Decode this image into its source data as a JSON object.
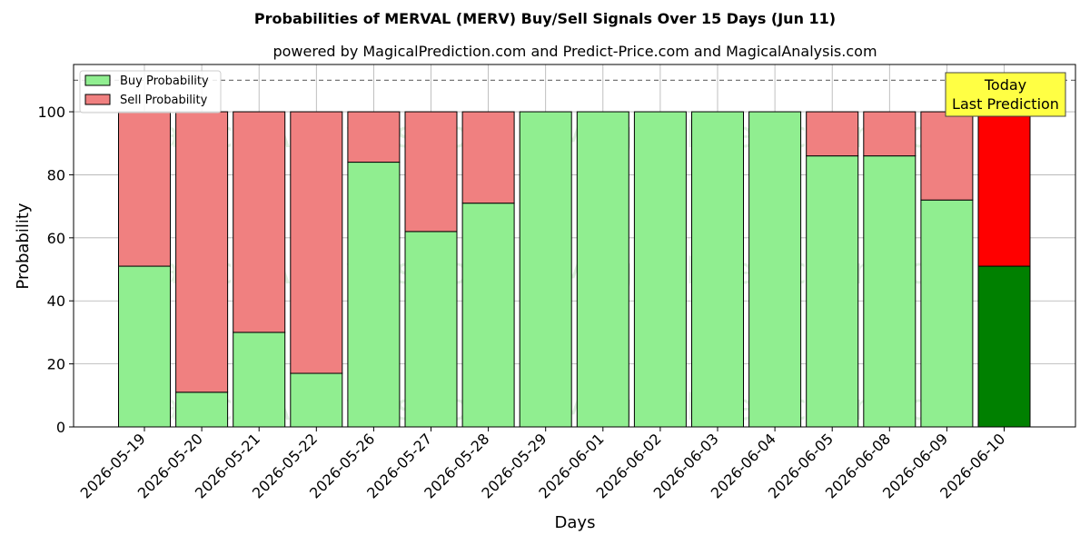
{
  "chart_data": {
    "type": "bar",
    "stacked": true,
    "title": "Probabilities of MERVAL (MERV) Buy/Sell Signals Over 15 Days (Jun 11)",
    "subtitle": "powered by MagicalPrediction.com and Predict-Price.com and MagicalAnalysis.com",
    "xlabel": "Days",
    "ylabel": "Probability",
    "ylim": [
      0,
      115
    ],
    "yticks": [
      0,
      20,
      40,
      60,
      80,
      100
    ],
    "grid": true,
    "legend_position": "top-left",
    "reference_line": 110,
    "categories": [
      "2026-05-19",
      "2026-05-20",
      "2026-05-21",
      "2026-05-22",
      "2026-05-26",
      "2026-05-27",
      "2026-05-28",
      "2026-05-29",
      "2026-06-01",
      "2026-06-02",
      "2026-06-03",
      "2026-06-04",
      "2026-06-05",
      "2026-06-08",
      "2026-06-09",
      "2026-06-10"
    ],
    "series": [
      {
        "name": "Buy Probability",
        "color": "#90ee90",
        "highlight_color": "#008000",
        "values": [
          51,
          11,
          30,
          17,
          84,
          62,
          71,
          100,
          100,
          100,
          100,
          100,
          86,
          86,
          72,
          51
        ]
      },
      {
        "name": "Sell Probability",
        "color": "#f08080",
        "highlight_color": "#ff0000",
        "values": [
          49,
          89,
          70,
          83,
          16,
          38,
          29,
          0,
          0,
          0,
          0,
          0,
          14,
          14,
          28,
          49
        ]
      }
    ],
    "highlight_index": 15,
    "annotation": {
      "line1": "Today",
      "line2": "Last Prediction",
      "background": "#ffff44"
    },
    "watermarks": [
      "MagicalAnalysis.com",
      "MagicalPrediction.com"
    ]
  }
}
